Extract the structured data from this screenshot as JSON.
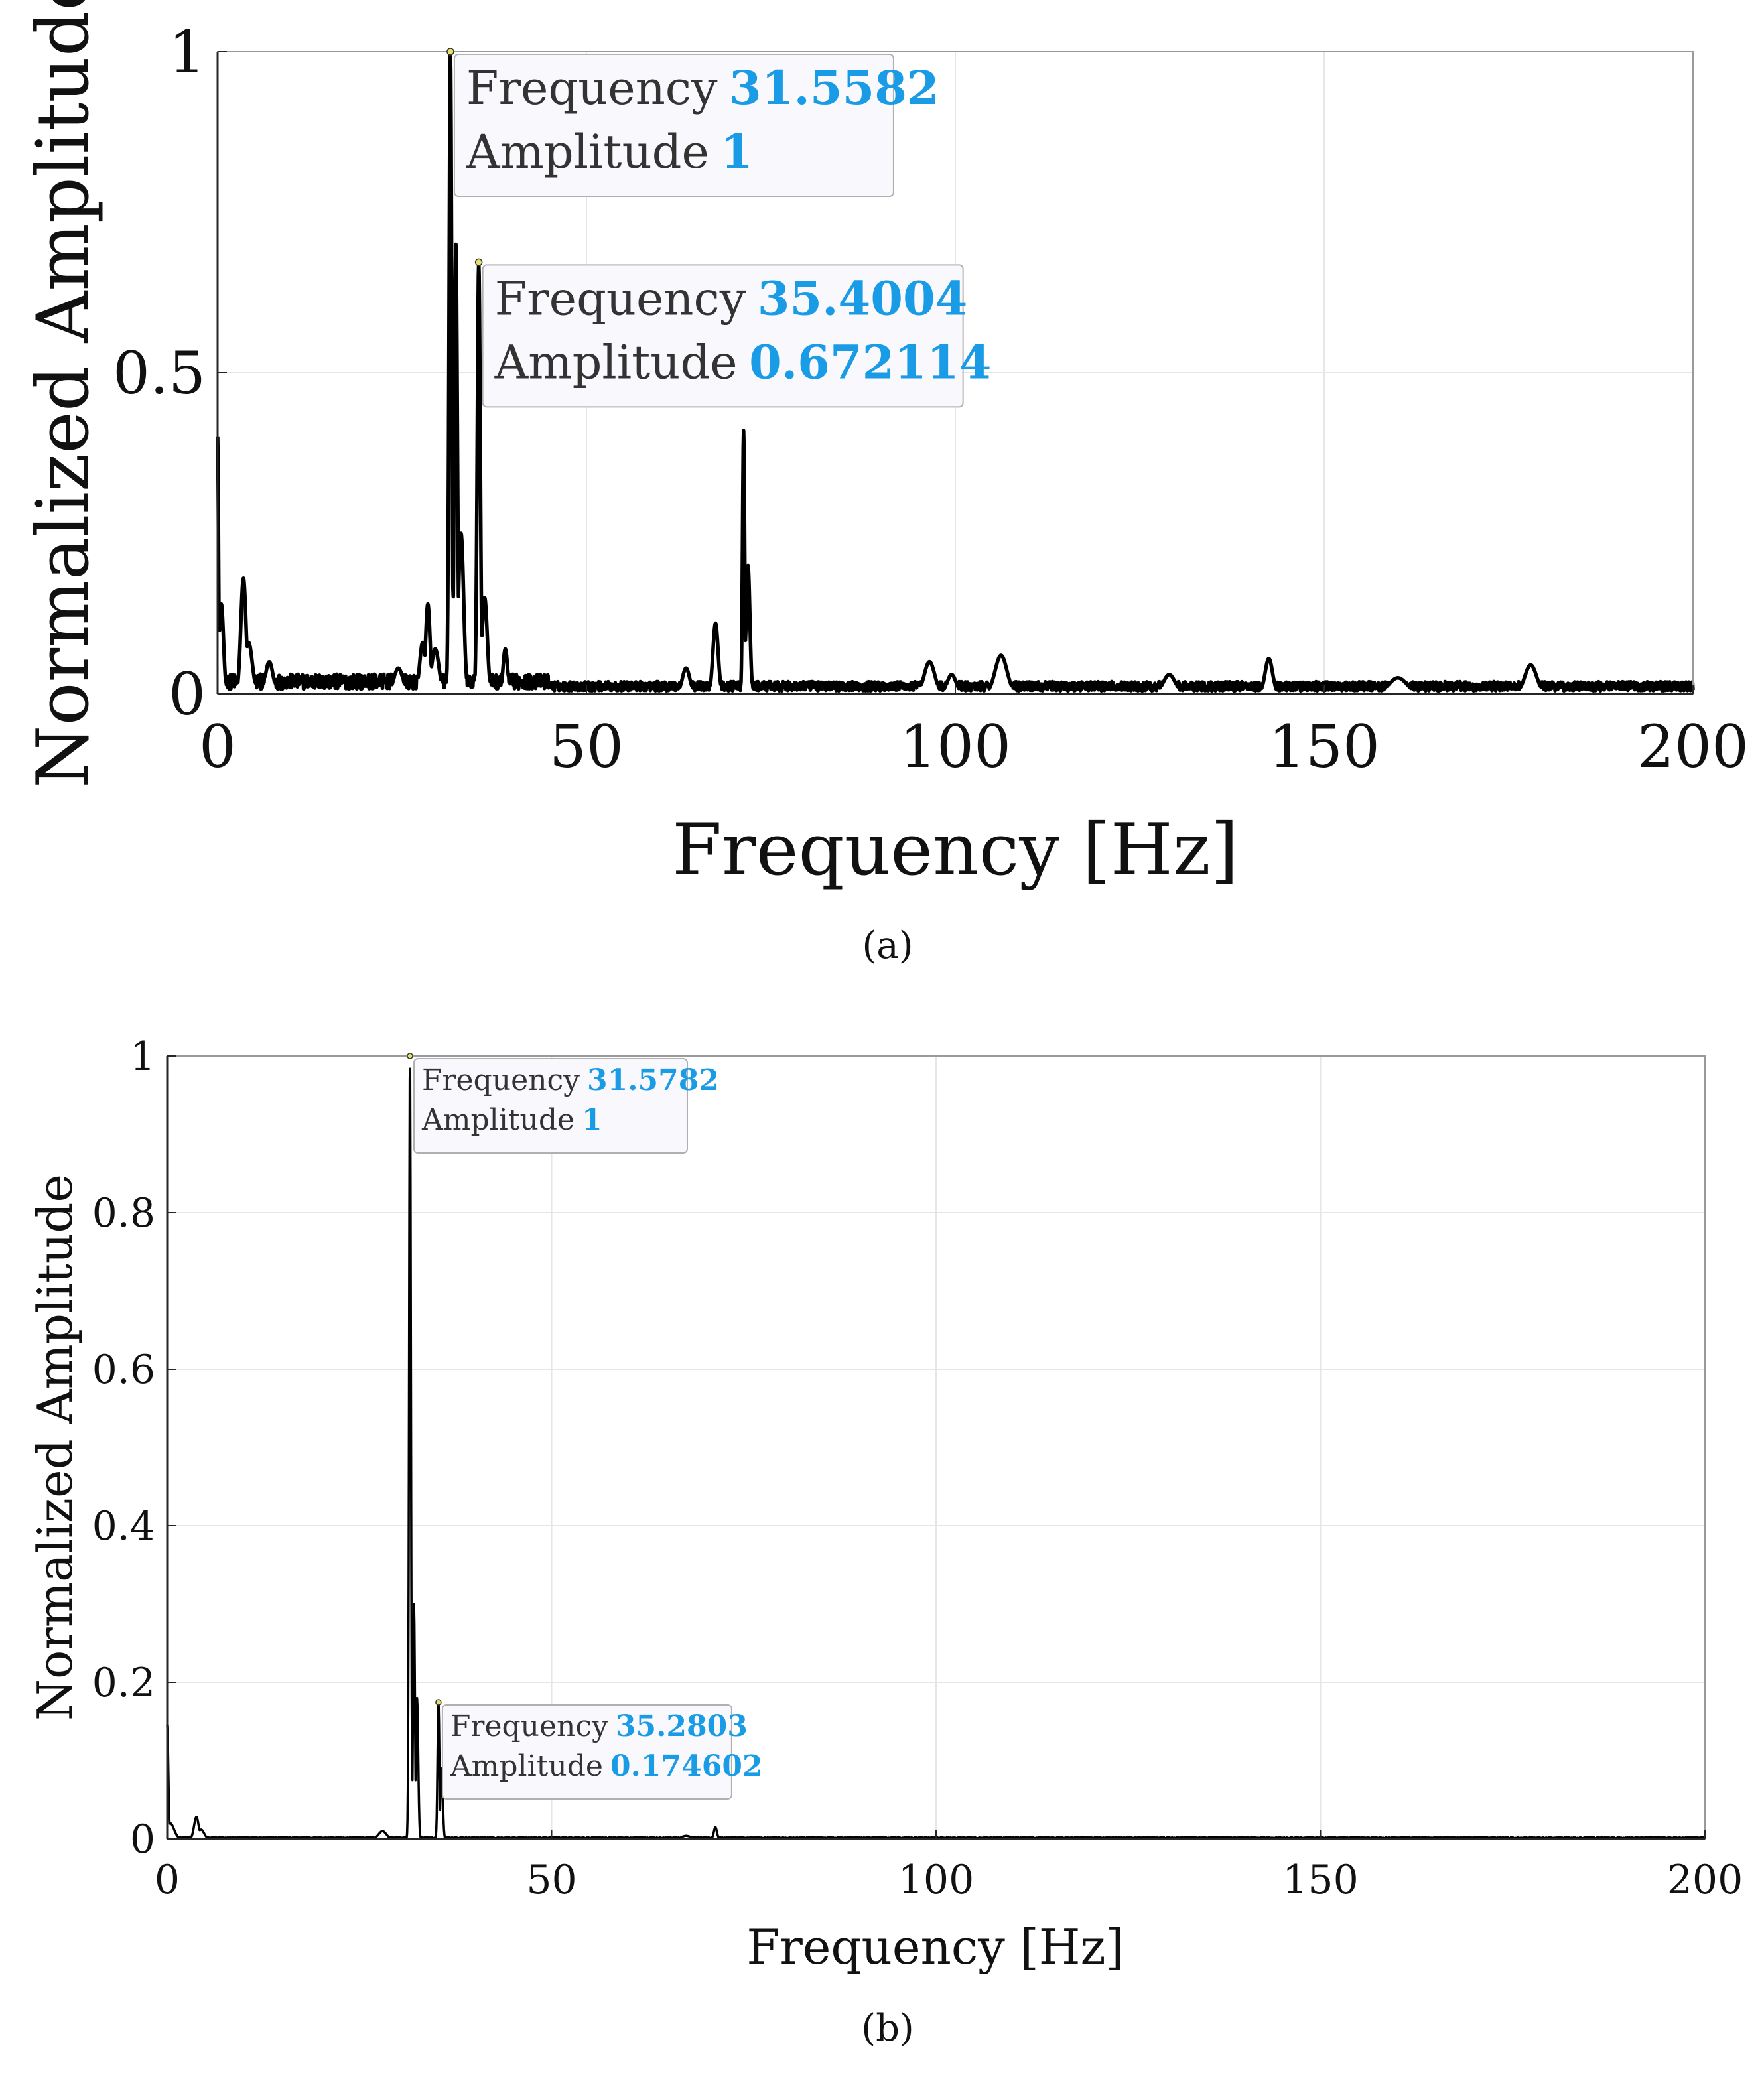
{
  "colors": {
    "trace": "#000000",
    "grid": "#e6e6e6",
    "axis": "#262626",
    "datatip_value": "#1a9be6",
    "datatip_bg": "#f8f8fd",
    "datatip_border": "#b0b0b0"
  },
  "chart_data": [
    {
      "type": "line",
      "panel": "a",
      "caption": "(a)",
      "xlabel": "Frequency [Hz]",
      "ylabel": "Normalized Amplitude",
      "xlim": [
        0,
        200
      ],
      "ylim": [
        0,
        1
      ],
      "xticks": [
        0,
        50,
        100,
        150,
        200
      ],
      "xtick_labels": [
        "0",
        "50",
        "100",
        "150",
        "200"
      ],
      "yticks": [
        0,
        0.5,
        1
      ],
      "ytick_labels": [
        "0",
        "0.5",
        "1"
      ],
      "grid": true,
      "noise_floor": 0.012,
      "peaks": [
        {
          "x": 0.0,
          "y": 0.4,
          "w": 0.12
        },
        {
          "x": 0.5,
          "y": 0.14,
          "w": 0.3
        },
        {
          "x": 3.5,
          "y": 0.18,
          "w": 0.35
        },
        {
          "x": 4.2,
          "y": 0.08,
          "w": 0.5
        },
        {
          "x": 7.0,
          "y": 0.05,
          "w": 0.5
        },
        {
          "x": 24.5,
          "y": 0.04,
          "w": 0.6
        },
        {
          "x": 27.8,
          "y": 0.08,
          "w": 0.4
        },
        {
          "x": 28.5,
          "y": 0.14,
          "w": 0.3
        },
        {
          "x": 29.5,
          "y": 0.07,
          "w": 0.5
        },
        {
          "x": 31.5582,
          "y": 1.0,
          "w": 0.18
        },
        {
          "x": 32.3,
          "y": 0.7,
          "w": 0.2
        },
        {
          "x": 33.0,
          "y": 0.25,
          "w": 0.35
        },
        {
          "x": 35.4004,
          "y": 0.672114,
          "w": 0.2
        },
        {
          "x": 36.2,
          "y": 0.15,
          "w": 0.35
        },
        {
          "x": 39.0,
          "y": 0.07,
          "w": 0.3
        },
        {
          "x": 63.5,
          "y": 0.04,
          "w": 0.5
        },
        {
          "x": 67.5,
          "y": 0.11,
          "w": 0.35
        },
        {
          "x": 71.3,
          "y": 0.41,
          "w": 0.14
        },
        {
          "x": 71.9,
          "y": 0.2,
          "w": 0.25
        },
        {
          "x": 96.5,
          "y": 0.05,
          "w": 0.7
        },
        {
          "x": 99.5,
          "y": 0.03,
          "w": 0.6
        },
        {
          "x": 106.2,
          "y": 0.06,
          "w": 0.8
        },
        {
          "x": 129.0,
          "y": 0.03,
          "w": 0.8
        },
        {
          "x": 142.5,
          "y": 0.055,
          "w": 0.5
        },
        {
          "x": 160.0,
          "y": 0.025,
          "w": 1.2
        },
        {
          "x": 178.0,
          "y": 0.045,
          "w": 0.8
        }
      ],
      "datatips": [
        {
          "frequency_label": "Frequency",
          "frequency": "31.5582",
          "amplitude_label": "Amplitude",
          "amplitude": "1",
          "x": 31.5582,
          "y": 1.0
        },
        {
          "frequency_label": "Frequency",
          "frequency": "35.4004",
          "amplitude_label": "Amplitude",
          "amplitude": "0.672114",
          "x": 35.4004,
          "y": 0.672114
        }
      ]
    },
    {
      "type": "line",
      "panel": "b",
      "caption": "(b)",
      "xlabel": "Frequency [Hz]",
      "ylabel": "Normalized Amplitude",
      "xlim": [
        0,
        200
      ],
      "ylim": [
        0,
        1
      ],
      "xticks": [
        0,
        50,
        100,
        150,
        200
      ],
      "xtick_labels": [
        "0",
        "50",
        "100",
        "150",
        "200"
      ],
      "yticks": [
        0,
        0.2,
        0.4,
        0.6,
        0.8,
        1
      ],
      "ytick_labels": [
        "0",
        "0.2",
        "0.4",
        "0.6",
        "0.8",
        "1"
      ],
      "grid": true,
      "noise_floor": 0.0015,
      "peaks": [
        {
          "x": 0.0,
          "y": 0.145,
          "w": 0.15
        },
        {
          "x": 0.4,
          "y": 0.02,
          "w": 0.5
        },
        {
          "x": 3.8,
          "y": 0.028,
          "w": 0.3
        },
        {
          "x": 4.4,
          "y": 0.012,
          "w": 0.4
        },
        {
          "x": 28.0,
          "y": 0.01,
          "w": 0.5
        },
        {
          "x": 31.5782,
          "y": 1.0,
          "w": 0.12
        },
        {
          "x": 32.1,
          "y": 0.3,
          "w": 0.12
        },
        {
          "x": 32.5,
          "y": 0.18,
          "w": 0.15
        },
        {
          "x": 35.2803,
          "y": 0.174602,
          "w": 0.12
        },
        {
          "x": 35.7,
          "y": 0.09,
          "w": 0.15
        },
        {
          "x": 67.5,
          "y": 0.004,
          "w": 0.6
        },
        {
          "x": 71.3,
          "y": 0.015,
          "w": 0.2
        }
      ],
      "datatips": [
        {
          "frequency_label": "Frequency",
          "frequency": "31.5782",
          "amplitude_label": "Amplitude",
          "amplitude": "1",
          "x": 31.5782,
          "y": 1.0
        },
        {
          "frequency_label": "Frequency",
          "frequency": "35.2803",
          "amplitude_label": "Amplitude",
          "amplitude": "0.174602",
          "x": 35.2803,
          "y": 0.174602
        }
      ]
    }
  ]
}
